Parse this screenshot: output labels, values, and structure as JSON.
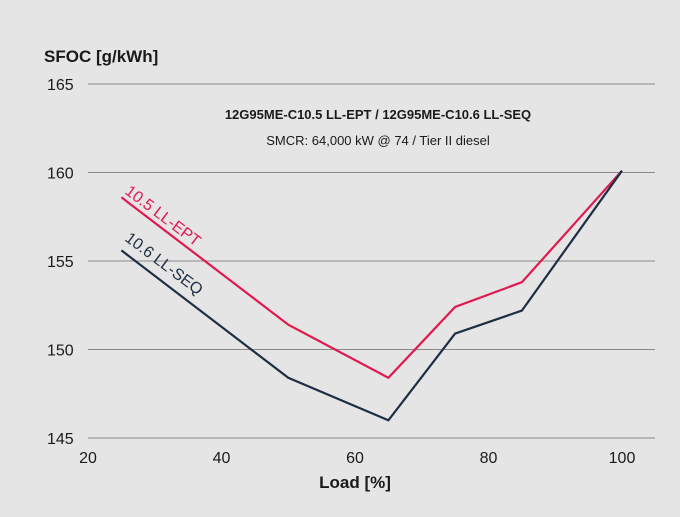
{
  "colors": {
    "background": "#e5e5e5",
    "grid": "#8a8a8a",
    "text": "#1a1a1a",
    "series_ept": "#e0194f",
    "series_seq": "#1f2e44"
  },
  "chart_data": {
    "type": "line",
    "title": "12G95ME-C10.5 LL-EPT / 12G95ME-C10.6 LL-SEQ",
    "subtitle": "SMCR: 64,000 kW @ 74 / Tier II diesel",
    "xlabel": "Load [%]",
    "ylabel": "SFOC [g/kWh]",
    "xlim": [
      20,
      105
    ],
    "ylim": [
      145,
      165
    ],
    "x_ticks": [
      20,
      40,
      60,
      80,
      100
    ],
    "y_ticks": [
      145,
      150,
      155,
      160,
      165
    ],
    "grid": "horizontal",
    "legend": "inline labels on lines",
    "series": [
      {
        "name": "10.5 LL-EPT",
        "color": "#e0194f",
        "x": [
          25,
          50,
          65,
          75,
          85,
          100
        ],
        "y": [
          158.6,
          151.4,
          148.4,
          152.4,
          153.8,
          160.1
        ]
      },
      {
        "name": "10.6 LL-SEQ",
        "color": "#1f2e44",
        "x": [
          25,
          50,
          65,
          75,
          85,
          100
        ],
        "y": [
          155.6,
          148.4,
          146.0,
          150.9,
          152.2,
          160.1
        ]
      }
    ]
  }
}
